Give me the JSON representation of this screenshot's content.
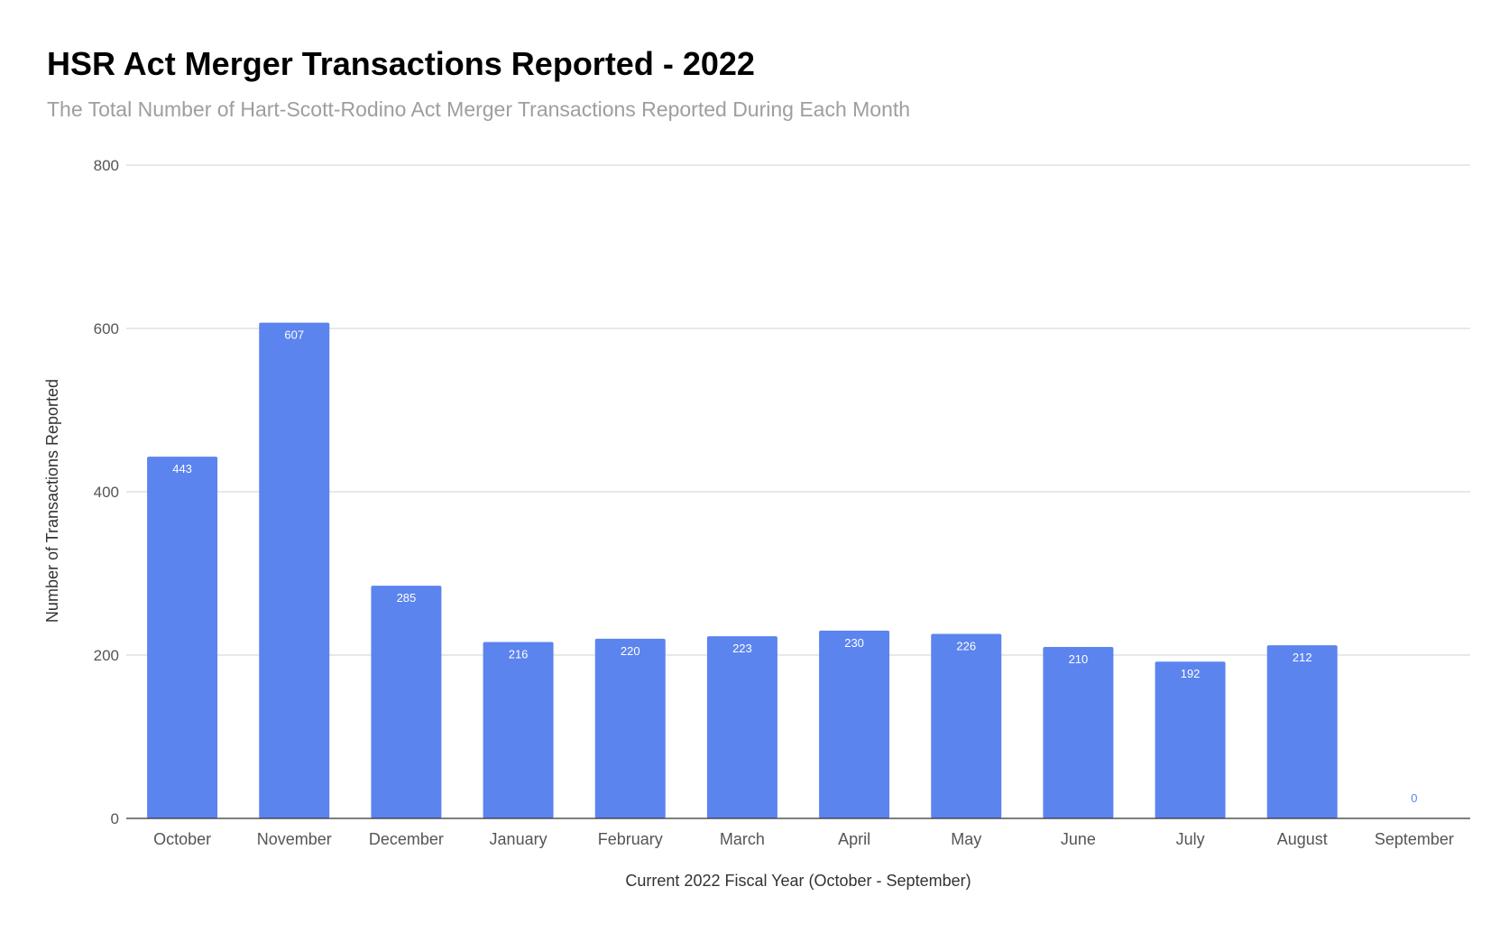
{
  "chart_data": {
    "type": "bar",
    "title": "HSR Act Merger Transactions Reported - 2022",
    "subtitle": "The Total Number of Hart-Scott-Rodino Act Merger Transactions Reported During Each Month",
    "xlabel": "Current 2022 Fiscal Year (October - September)",
    "ylabel": "Number of Transactions Reported",
    "categories": [
      "October",
      "November",
      "December",
      "January",
      "February",
      "March",
      "April",
      "May",
      "June",
      "July",
      "August",
      "September"
    ],
    "values": [
      443,
      607,
      285,
      216,
      220,
      223,
      230,
      226,
      210,
      192,
      212,
      0
    ],
    "data_labels": [
      "443",
      "607",
      "285",
      "216",
      "220",
      "223",
      "230",
      "226",
      "210",
      "192",
      "212",
      "0"
    ],
    "ylim": [
      0,
      800
    ],
    "yticks": [
      0,
      200,
      400,
      600,
      800
    ],
    "ytick_labels": [
      "0",
      "200",
      "400",
      "600",
      "800"
    ],
    "grid": true,
    "legend": "none",
    "colors": {
      "bar": "#5b84ee",
      "grid": "#d0d0d0",
      "axis": "#333333",
      "data_label_inside": "#ffffff",
      "data_label_outside": "#5b84ee"
    }
  }
}
